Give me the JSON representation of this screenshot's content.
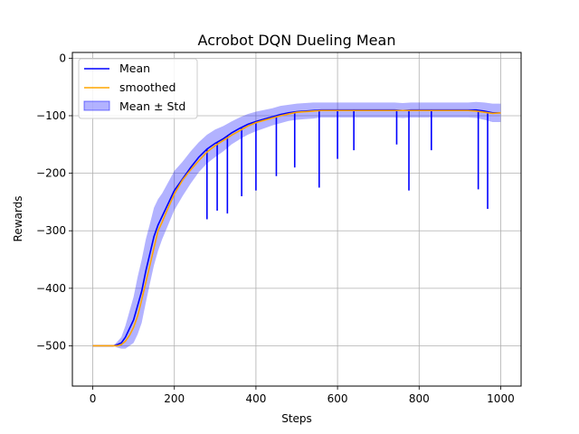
{
  "chart_data": {
    "type": "line",
    "title": "Acrobot DQN Dueling Mean",
    "xlabel": "Steps",
    "ylabel": "Rewards",
    "xlim": [
      -50,
      1050
    ],
    "ylim": [
      -570,
      10
    ],
    "xticks": [
      0,
      200,
      400,
      600,
      800,
      1000
    ],
    "yticks": [
      0,
      -100,
      -200,
      -300,
      -400,
      -500
    ],
    "grid": true,
    "legend_position": "top-left",
    "colors": {
      "mean": "#0000ff",
      "smoothed": "#ffa500",
      "band": "#0000ff"
    },
    "legend": [
      "Mean",
      "smoothed",
      "Mean ± Std"
    ],
    "x": [
      0,
      25,
      50,
      60,
      70,
      80,
      90,
      100,
      110,
      120,
      130,
      140,
      150,
      160,
      170,
      180,
      190,
      200,
      220,
      240,
      260,
      280,
      300,
      320,
      340,
      360,
      380,
      400,
      420,
      440,
      460,
      480,
      500,
      520,
      540,
      560,
      580,
      600,
      620,
      640,
      660,
      680,
      700,
      720,
      740,
      760,
      780,
      800,
      820,
      840,
      860,
      880,
      900,
      920,
      940,
      960,
      980,
      1000
    ],
    "series": [
      {
        "name": "Mean",
        "values": [
          -500,
          -500,
          -500,
          -498,
          -495,
          -485,
          -470,
          -455,
          -430,
          -405,
          -370,
          -340,
          -310,
          -290,
          -275,
          -260,
          -245,
          -230,
          -210,
          -190,
          -172,
          -158,
          -148,
          -140,
          -130,
          -122,
          -115,
          -110,
          -106,
          -102,
          -98,
          -95,
          -93,
          -92,
          -91,
          -90,
          -90,
          -90,
          -90,
          -90,
          -90,
          -90,
          -90,
          -90,
          -90,
          -91,
          -90,
          -90,
          -90,
          -90,
          -90,
          -90,
          -90,
          -90,
          -90,
          -92,
          -95,
          -95
        ]
      },
      {
        "name": "smoothed",
        "values": [
          -500,
          -500,
          -500,
          -500,
          -498,
          -492,
          -482,
          -468,
          -448,
          -420,
          -390,
          -360,
          -330,
          -300,
          -285,
          -268,
          -252,
          -236,
          -212,
          -194,
          -178,
          -163,
          -152,
          -143,
          -134,
          -126,
          -118,
          -112,
          -108,
          -104,
          -100,
          -97,
          -94,
          -93,
          -92,
          -91,
          -91,
          -91,
          -91,
          -91,
          -91,
          -91,
          -91,
          -91,
          -91,
          -91,
          -91,
          -91,
          -91,
          -91,
          -91,
          -91,
          -91,
          -91,
          -92,
          -94,
          -96,
          -95
        ]
      },
      {
        "name": "Mean ± Std",
        "values": [
          0,
          0,
          0,
          5,
          10,
          20,
          30,
          40,
          50,
          55,
          55,
          52,
          50,
          45,
          40,
          38,
          36,
          34,
          30,
          28,
          26,
          25,
          24,
          22,
          20,
          19,
          18,
          17,
          16,
          15,
          15,
          14,
          14,
          14,
          14,
          13,
          13,
          13,
          13,
          13,
          13,
          13,
          13,
          13,
          13,
          13,
          13,
          13,
          13,
          13,
          13,
          13,
          13,
          13,
          14,
          15,
          16,
          16
        ]
      }
    ],
    "dips": [
      {
        "x": 280,
        "y": -280
      },
      {
        "x": 305,
        "y": -265
      },
      {
        "x": 330,
        "y": -270
      },
      {
        "x": 365,
        "y": -240
      },
      {
        "x": 400,
        "y": -230
      },
      {
        "x": 450,
        "y": -205
      },
      {
        "x": 495,
        "y": -190
      },
      {
        "x": 555,
        "y": -225
      },
      {
        "x": 600,
        "y": -175
      },
      {
        "x": 640,
        "y": -160
      },
      {
        "x": 745,
        "y": -150
      },
      {
        "x": 775,
        "y": -230
      },
      {
        "x": 830,
        "y": -160
      },
      {
        "x": 945,
        "y": -228
      },
      {
        "x": 968,
        "y": -262
      }
    ]
  }
}
